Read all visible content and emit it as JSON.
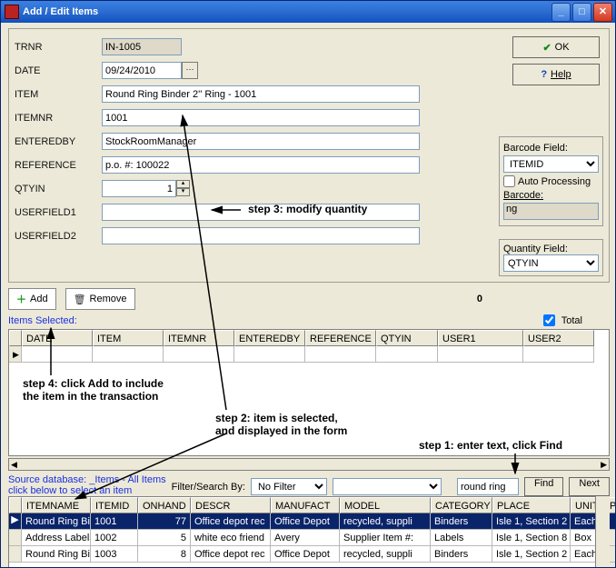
{
  "window": {
    "title": "Add / Edit Items"
  },
  "buttons": {
    "ok": "OK",
    "help": "Help",
    "add": "Add",
    "remove": "Remove",
    "find": "Find",
    "next": "Next"
  },
  "form": {
    "labels": {
      "trnr": "TRNR",
      "date": "DATE",
      "item": "ITEM",
      "itemnr": "ITEMNR",
      "enteredby": "ENTEREDBY",
      "reference": "REFERENCE",
      "qtyin": "QTYIN",
      "user1": "USERFIELD1",
      "user2": "USERFIELD2"
    },
    "trnr": "IN-1005",
    "date": "09/24/2010",
    "item": "Round Ring Binder 2'' Ring - 1001",
    "itemnr": "1001",
    "enteredby": "StockRoomManager",
    "reference": "p.o. #: 100022",
    "qtyin": "1",
    "user1": "",
    "user2": ""
  },
  "barcode": {
    "field_label": "Barcode Field:",
    "field": "ITEMID",
    "auto_label": "Auto Processing",
    "barcode_label": "Barcode:",
    "barcode_value": "ng"
  },
  "qtyfield": {
    "label": "Quantity Field:",
    "value": "QTYIN"
  },
  "middle": {
    "count": "0",
    "items_selected": "Items Selected:",
    "total_label": "Total",
    "cols": [
      "DATE",
      "ITEM",
      "ITEMNR",
      "ENTEREDBY",
      "REFERENCE",
      "QTYIN",
      "USER1",
      "USER2"
    ]
  },
  "source": {
    "line1": "Source database: _Items - All Items",
    "line2": "click below to select an item",
    "filter_label": "Filter/Search By:",
    "filter_value": "No Filter",
    "search_text": "round ring"
  },
  "lower_cols": [
    "ITEMNAME",
    "ITEMID",
    "ONHAND",
    "DESCR",
    "MANUFACT",
    "MODEL",
    "CATEGORY",
    "PLACE",
    "UNIT",
    "PRICE"
  ],
  "lower_rows": [
    {
      "sel": true,
      "name": "Round Ring Bin",
      "id": "1001",
      "onhand": "77",
      "descr": "Office depot rec",
      "manu": "Office Depot",
      "model": "recycled, suppli",
      "cat": "Binders",
      "place": "Isle 1, Section 2",
      "unit": "Each",
      "price": ""
    },
    {
      "sel": false,
      "name": "Address Labels,",
      "id": "1002",
      "onhand": "5",
      "descr": "white eco friend",
      "manu": "Avery",
      "model": "Supplier Item #:",
      "cat": "Labels",
      "place": "Isle 1, Section 8",
      "unit": "Box",
      "price": ""
    },
    {
      "sel": false,
      "name": "Round Ring Bin",
      "id": "1003",
      "onhand": "8",
      "descr": "Office depot rec",
      "manu": "Office Depot",
      "model": "recycled, suppli",
      "cat": "Binders",
      "place": "Isle 1, Section 2",
      "unit": "Each",
      "price": ""
    }
  ],
  "anno": {
    "s1": "step 1: enter text, click Find",
    "s2a": "step 2: item is selected,",
    "s2b": "and displayed in the form",
    "s3": "step 3: modify quantity",
    "s4a": "step 4: click Add to include",
    "s4b": "the item in the transaction"
  }
}
